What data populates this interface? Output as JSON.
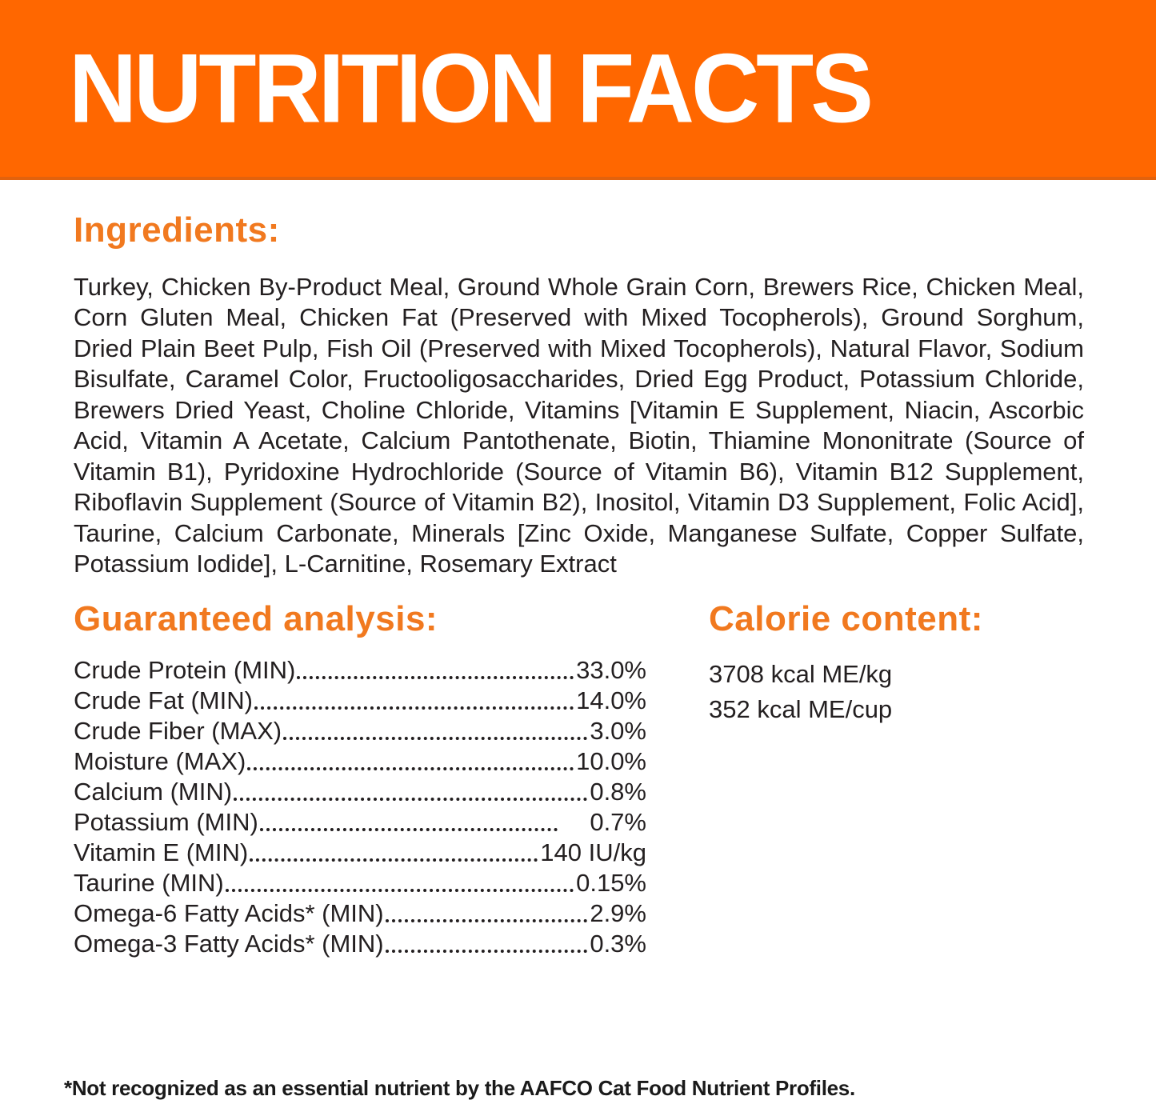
{
  "banner": {
    "title": "NUTRITION FACTS"
  },
  "ingredients": {
    "heading": "Ingredients:",
    "text": "Turkey, Chicken By-Product Meal, Ground Whole Grain Corn, Brewers Rice, Chicken Meal, Corn Gluten Meal, Chicken Fat (Preserved with Mixed Tocopherols), Ground Sorghum, Dried Plain Beet Pulp, Fish Oil (Preserved with Mixed Tocopherols), Natural Flavor, Sodium Bisulfate, Caramel Color, Fructooligosaccharides, Dried Egg Product, Potassium Chloride, Brewers Dried Yeast, Choline Chloride, Vitamins [Vitamin E Supplement, Niacin, Ascorbic Acid, Vitamin A Acetate, Calcium Pantothenate, Biotin, Thiamine Mononitrate (Source of Vitamin B1), Pyridoxine Hydrochloride (Source of Vitamin B6), Vitamin B12 Supplement, Riboflavin Supplement (Source of Vitamin B2), Inositol, Vitamin D3 Supplement, Folic Acid], Taurine, Calcium Carbonate, Minerals [Zinc Oxide, Manganese Sulfate, Copper Sulfate, Potassium Iodide], L-Carnitine, Rosemary Extract"
  },
  "guaranteed_analysis": {
    "heading": "Guaranteed analysis:",
    "rows": [
      {
        "label": "Crude Protein (MIN)",
        "value": "33.0%"
      },
      {
        "label": "Crude Fat (MIN)",
        "value": "14.0%"
      },
      {
        "label": "Crude Fiber (MAX)",
        "value": "3.0%"
      },
      {
        "label": "Moisture (MAX)",
        "value": "10.0%"
      },
      {
        "label": "Calcium (MIN)",
        "value": "0.8%"
      },
      {
        "label": "Potassium (MIN)",
        "value": "0.7%"
      },
      {
        "label": "Vitamin E (MIN)",
        "value": "140 IU/kg"
      },
      {
        "label": "Taurine (MIN)",
        "value": "0.15%"
      },
      {
        "label": "Omega-6 Fatty Acids* (MIN)",
        "value": "2.9%"
      },
      {
        "label": "Omega-3 Fatty Acids* (MIN)",
        "value": "0.3%"
      }
    ]
  },
  "calorie_content": {
    "heading": "Calorie content:",
    "lines": [
      "3708 kcal ME/kg",
      "352 kcal ME/cup"
    ]
  },
  "footnote": "*Not recognized as an essential nutrient by the AAFCO Cat Food Nutrient Profiles.",
  "colors": {
    "banner_orange": "#FF6700",
    "heading_orange": "#F1791F",
    "text_dark": "#231F20"
  }
}
